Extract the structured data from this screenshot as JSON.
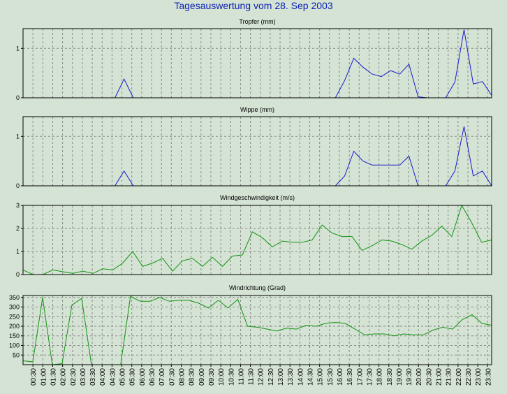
{
  "title": "Tagesauswertung vom 28. Sep 2003",
  "colors": {
    "background": "#d4e3d3",
    "title": "#0a1fb5",
    "precip_line": "#1a1ad0",
    "wind_line": "#129312",
    "grid": "#8a8a8a"
  },
  "chart_data": [
    {
      "type": "line",
      "title": "Tropfer (mm)",
      "ylim": [
        0,
        1.4
      ],
      "yticks": [
        "0",
        "1"
      ],
      "grid": true,
      "series": [
        {
          "values": [
            0,
            0,
            0,
            0,
            0,
            0,
            0,
            0,
            0,
            0,
            0,
            0.38,
            0,
            0,
            0,
            0,
            0,
            0,
            0,
            0,
            0,
            0,
            0,
            0,
            0,
            0,
            0,
            0,
            0,
            0,
            0,
            0,
            0,
            0,
            0,
            0.35,
            0.8,
            0.62,
            0.48,
            0.43,
            0.55,
            0.48,
            0.68,
            0.02,
            0,
            0,
            0,
            0.32,
            1.38,
            0.28,
            0.33,
            0.05
          ]
        }
      ]
    },
    {
      "type": "line",
      "title": "Wippe (mm)",
      "ylim": [
        0,
        1.4
      ],
      "yticks": [
        "0",
        "1"
      ],
      "grid": true,
      "series": [
        {
          "values": [
            0,
            0,
            0,
            0,
            0,
            0,
            0,
            0,
            0,
            0,
            0,
            0.3,
            0,
            0,
            0,
            0,
            0,
            0,
            0,
            0,
            0,
            0,
            0,
            0,
            0,
            0,
            0,
            0,
            0,
            0,
            0,
            0,
            0,
            0,
            0,
            0.2,
            0.7,
            0.5,
            0.42,
            0.42,
            0.42,
            0.42,
            0.6,
            0,
            0,
            0,
            0,
            0.3,
            1.2,
            0.2,
            0.3,
            0
          ]
        }
      ]
    },
    {
      "type": "line",
      "title": "Windgeschwindigkeit (m/s)",
      "ylim": [
        0,
        3
      ],
      "yticks": [
        "0",
        "1",
        "2",
        "3"
      ],
      "grid": true,
      "series": [
        {
          "values": [
            0.2,
            0,
            0,
            0.2,
            0.12,
            0.05,
            0.15,
            0.05,
            0.25,
            0.2,
            0.5,
            1.0,
            0.35,
            0.5,
            0.7,
            0.15,
            0.6,
            0.7,
            0.35,
            0.75,
            0.35,
            0.8,
            0.85,
            1.85,
            1.6,
            1.2,
            1.45,
            1.4,
            1.4,
            1.5,
            2.15,
            1.8,
            1.65,
            1.65,
            1.05,
            1.25,
            1.5,
            1.45,
            1.3,
            1.1,
            1.45,
            1.7,
            2.1,
            1.65,
            3.0,
            2.25,
            1.4,
            1.5
          ]
        }
      ]
    },
    {
      "type": "line",
      "title": "Windrichtung (Grad)",
      "ylim": [
        0,
        360
      ],
      "yticks": [
        "50",
        "100",
        "150",
        "200",
        "250",
        "300",
        "350"
      ],
      "grid": true,
      "series": [
        {
          "values": [
            20,
            15,
            350,
            0,
            5,
            310,
            345,
            0,
            0,
            0,
            0,
            355,
            330,
            330,
            350,
            330,
            335,
            335,
            320,
            295,
            335,
            295,
            340,
            200,
            195,
            185,
            175,
            190,
            185,
            205,
            200,
            215,
            220,
            215,
            185,
            155,
            160,
            160,
            150,
            160,
            155,
            155,
            180,
            195,
            185,
            235,
            260,
            215,
            205
          ]
        }
      ]
    }
  ],
  "x_tick_labels": [
    "00:30",
    "01:00",
    "01:30",
    "02:00",
    "02:30",
    "03:00",
    "03:30",
    "04:00",
    "04:30",
    "05:00",
    "05:30",
    "06:00",
    "06:30",
    "07:00",
    "07:30",
    "08:00",
    "08:30",
    "09:00",
    "09:30",
    "10:00",
    "10:30",
    "11:00",
    "11:30",
    "12:00",
    "12:30",
    "13:00",
    "13:30",
    "14:00",
    "14:30",
    "15:00",
    "15:30",
    "16:00",
    "16:30",
    "17:00",
    "17:30",
    "18:00",
    "18:30",
    "19:00",
    "19:30",
    "20:00",
    "20:30",
    "21:00",
    "21:30",
    "22:00",
    "22:30",
    "23:00",
    "23:30"
  ]
}
